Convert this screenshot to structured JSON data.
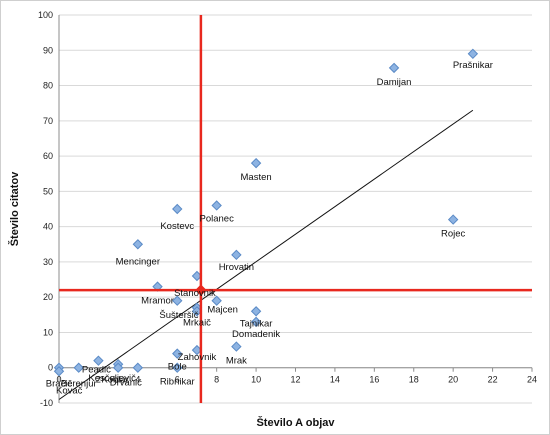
{
  "chart_data": {
    "type": "scatter",
    "xlabel": "Število A objav",
    "ylabel": "Število citatov",
    "xlim": [
      0,
      24
    ],
    "ylim": [
      -10,
      100
    ],
    "x_ticks": [
      0,
      2,
      4,
      6,
      8,
      10,
      12,
      14,
      16,
      18,
      20,
      22,
      24
    ],
    "y_ticks": [
      -10,
      0,
      10,
      20,
      30,
      40,
      50,
      60,
      70,
      80,
      90,
      100
    ],
    "marker_color": "#8db3e2",
    "marker_edge": "#5a8ac6",
    "reference_line_color": "#e8281e",
    "reference_lines": {
      "x": 7.2,
      "y": 22
    },
    "trendline": {
      "x": [
        0,
        21
      ],
      "y": [
        -9,
        73
      ]
    },
    "points": [
      {
        "x": 21,
        "y": 89,
        "label": "Prašnikar"
      },
      {
        "x": 17,
        "y": 85,
        "label": "Damijan"
      },
      {
        "x": 20,
        "y": 42,
        "label": "Rojec"
      },
      {
        "x": 10,
        "y": 58,
        "label": "Masten"
      },
      {
        "x": 8,
        "y": 46,
        "label": "Polanec"
      },
      {
        "x": 6,
        "y": 45,
        "label": "Kostevc"
      },
      {
        "x": 4,
        "y": 35,
        "label": "Mencinger"
      },
      {
        "x": 9,
        "y": 32,
        "label": "Hrovatin"
      },
      {
        "x": 7,
        "y": 26,
        "label": "Stanovnik"
      },
      {
        "x": 5,
        "y": 23,
        "label": "Mramor"
      },
      {
        "x": 6,
        "y": 19,
        "label": ""
      },
      {
        "x": 7,
        "y": 17,
        "label": "Šušteršič"
      },
      {
        "x": 8,
        "y": 19,
        "label": "Majcen"
      },
      {
        "x": 7,
        "y": 16,
        "label": "Mrkaič"
      },
      {
        "x": 10,
        "y": 16,
        "label": "Tajnikar"
      },
      {
        "x": 10,
        "y": 13,
        "label": "Domadenik"
      },
      {
        "x": 9,
        "y": 6,
        "label": "Mrak"
      },
      {
        "x": 7,
        "y": 5,
        "label": "Zahovnik"
      },
      {
        "x": 6,
        "y": 4,
        "label": "Bole"
      },
      {
        "x": 6,
        "y": 0,
        "label": "Ribnikar"
      },
      {
        "x": 0,
        "y": 0,
        "label": "Bračič"
      },
      {
        "x": 0,
        "y": -1,
        "label": "Kovač"
      },
      {
        "x": 1,
        "y": 0,
        "label": "Berenjur"
      },
      {
        "x": 2,
        "y": 2,
        "label": "Peadić"
      },
      {
        "x": 3,
        "y": 1,
        "label": "Kesčeljevič"
      },
      {
        "x": 3,
        "y": 0,
        "label": "Koblar"
      },
      {
        "x": 4,
        "y": 0,
        "label": "Drvanič"
      }
    ]
  }
}
